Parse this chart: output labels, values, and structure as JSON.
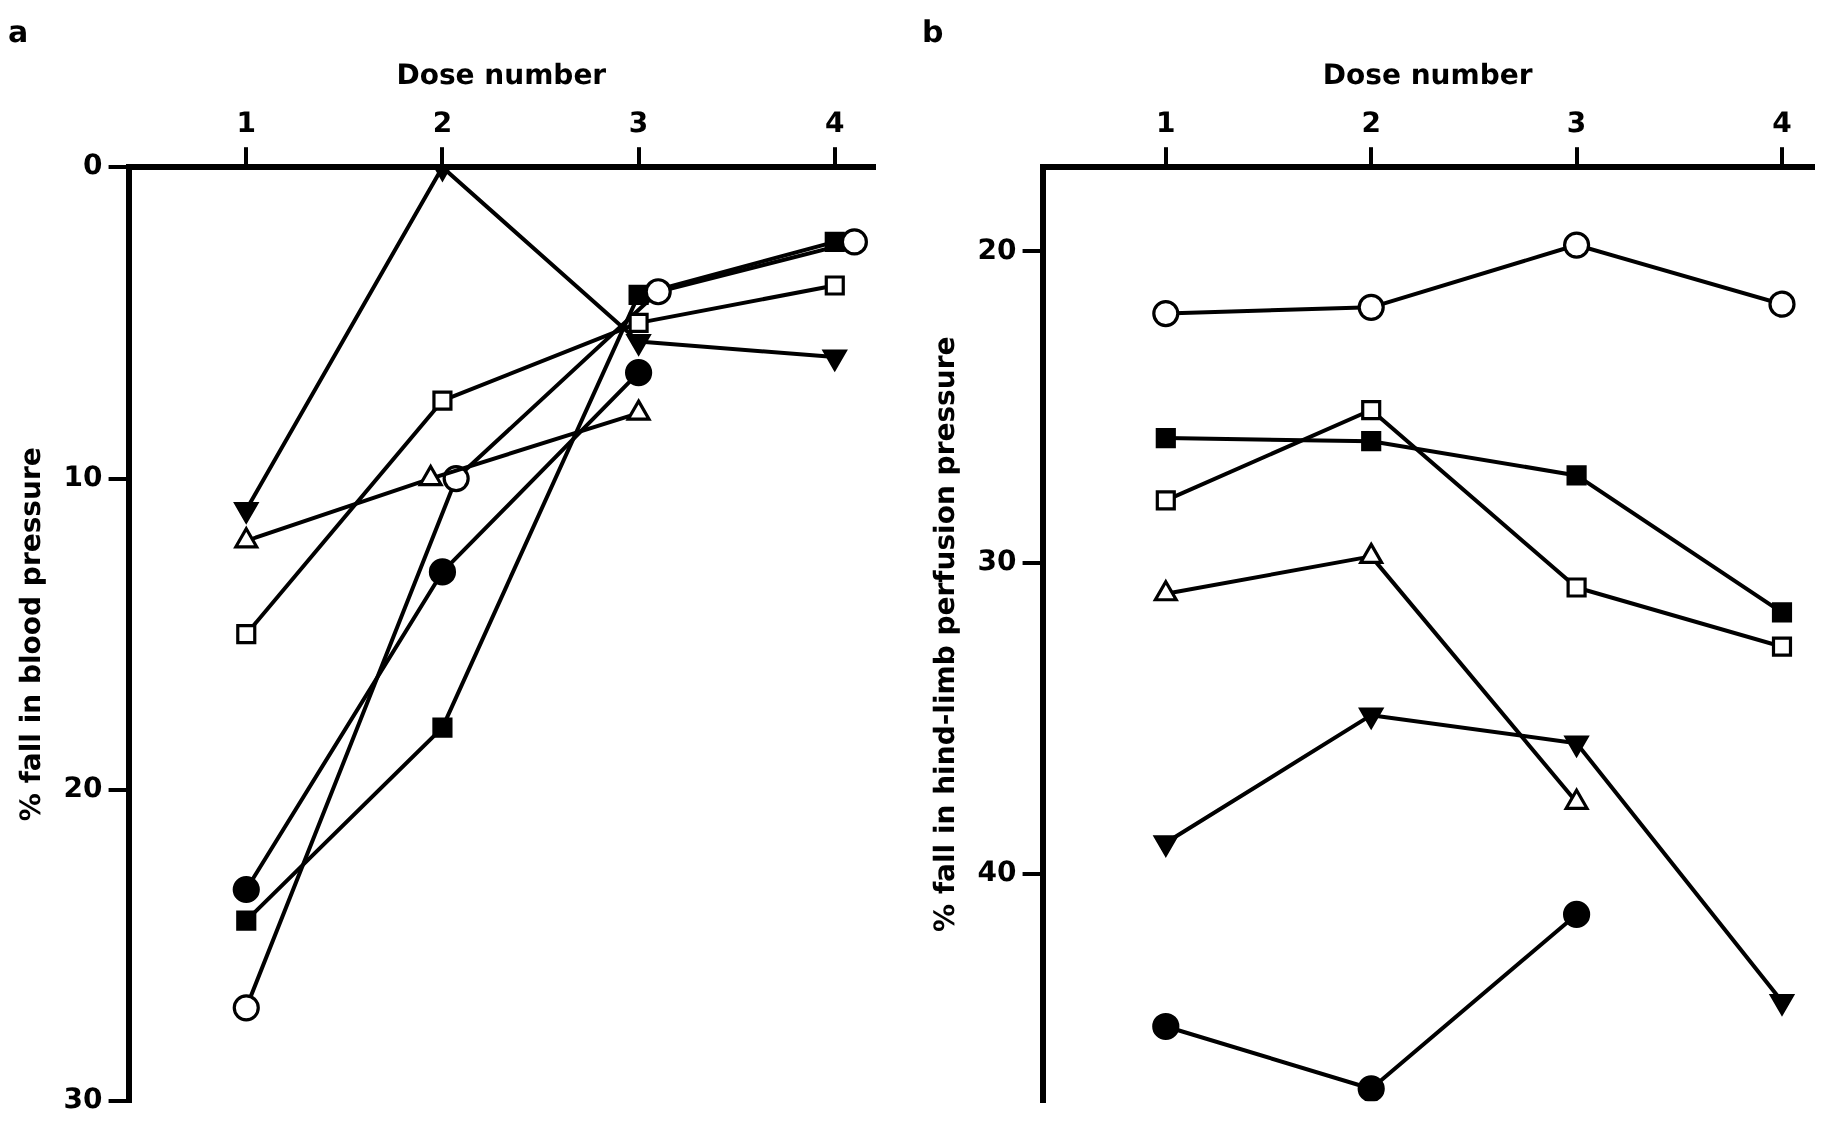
{
  "chart_data": [
    {
      "type": "line",
      "title": "a",
      "xlabel": "Dose number",
      "ylabel": "% fall in blood pressure",
      "xlim": [
        0.4,
        4.2
      ],
      "xticks": [
        1,
        2,
        3,
        4
      ],
      "ylim": [
        30,
        0
      ],
      "yticks": [
        0,
        10,
        20,
        30
      ],
      "grid": false,
      "legend": false,
      "line_style": "solid",
      "series": [
        {
          "color": "#000000",
          "marker": "triangle-down",
          "x": [
            1,
            2,
            3,
            4
          ],
          "values": [
            11,
            0,
            5.6,
            6.1
          ]
        },
        {
          "color": "#000000",
          "marker": "triangle",
          "colors": [
            "#ffffff",
            "#ffffff",
            "#ffffff"
          ],
          "x": [
            1,
            1.94,
            3
          ],
          "values": [
            12,
            10,
            7.9
          ]
        },
        {
          "color": "#000000",
          "marker": "square",
          "colors": [
            "#ffffff",
            "#ffffff",
            "#ffffff",
            "#ffffff"
          ],
          "x": [
            1,
            2,
            3,
            4
          ],
          "values": [
            15,
            7.5,
            5,
            3.8
          ]
        },
        {
          "color": "#000000",
          "marker": "circle",
          "colors": [
            "#ffffff",
            "#ffffff",
            "#ffffff",
            "#ffffff"
          ],
          "x": [
            1,
            2.07,
            3.1,
            4.1
          ],
          "values": [
            27,
            10,
            4,
            2.4
          ]
        },
        {
          "color": "#000000",
          "marker": "circle",
          "x": [
            1,
            2,
            3
          ],
          "values": [
            23.2,
            13,
            6.6
          ]
        },
        {
          "color": "#000000",
          "marker": "square",
          "x": [
            1,
            2,
            3,
            4
          ],
          "values": [
            24.2,
            18,
            4.1,
            2.4
          ]
        }
      ]
    },
    {
      "type": "line",
      "title": "b",
      "xlabel": "Dose number",
      "ylabel": "% fall in hind-limb perfusion pressure",
      "xlim": [
        0.4,
        4.15
      ],
      "xticks": [
        1,
        2,
        3,
        4
      ],
      "ylim": [
        47.3,
        17.3
      ],
      "yticks": [
        20,
        30,
        40
      ],
      "grid": false,
      "legend": false,
      "line_style": "solid",
      "series": [
        {
          "color": "#000000",
          "marker": "circle",
          "colors": [
            "#ffffff",
            "#ffffff",
            "#ffffff",
            "#ffffff"
          ],
          "x": [
            1,
            2,
            3,
            4
          ],
          "values": [
            22,
            21.8,
            19.8,
            21.7
          ]
        },
        {
          "color": "#000000",
          "marker": "square",
          "x": [
            1,
            2,
            3,
            4
          ],
          "values": [
            26,
            26.1,
            27.2,
            31.6
          ]
        },
        {
          "color": "#000000",
          "marker": "square",
          "colors": [
            "#ffffff",
            "#ffffff",
            "#ffffff",
            "#ffffff"
          ],
          "x": [
            1,
            2,
            3,
            4
          ],
          "values": [
            28,
            25.1,
            30.8,
            32.7
          ]
        },
        {
          "color": "#000000",
          "marker": "triangle",
          "colors": [
            "#ffffff",
            "#ffffff",
            "#ffffff"
          ],
          "x": [
            1,
            2,
            3
          ],
          "values": [
            31,
            29.8,
            37.7
          ]
        },
        {
          "color": "#000000",
          "marker": "triangle-down",
          "x": [
            1,
            2,
            3,
            4
          ],
          "values": [
            39,
            34.9,
            35.8,
            44.1
          ]
        },
        {
          "color": "#000000",
          "marker": "circle",
          "x": [
            1,
            2,
            3
          ],
          "values": [
            44.9,
            46.9,
            41.3
          ]
        }
      ]
    }
  ]
}
